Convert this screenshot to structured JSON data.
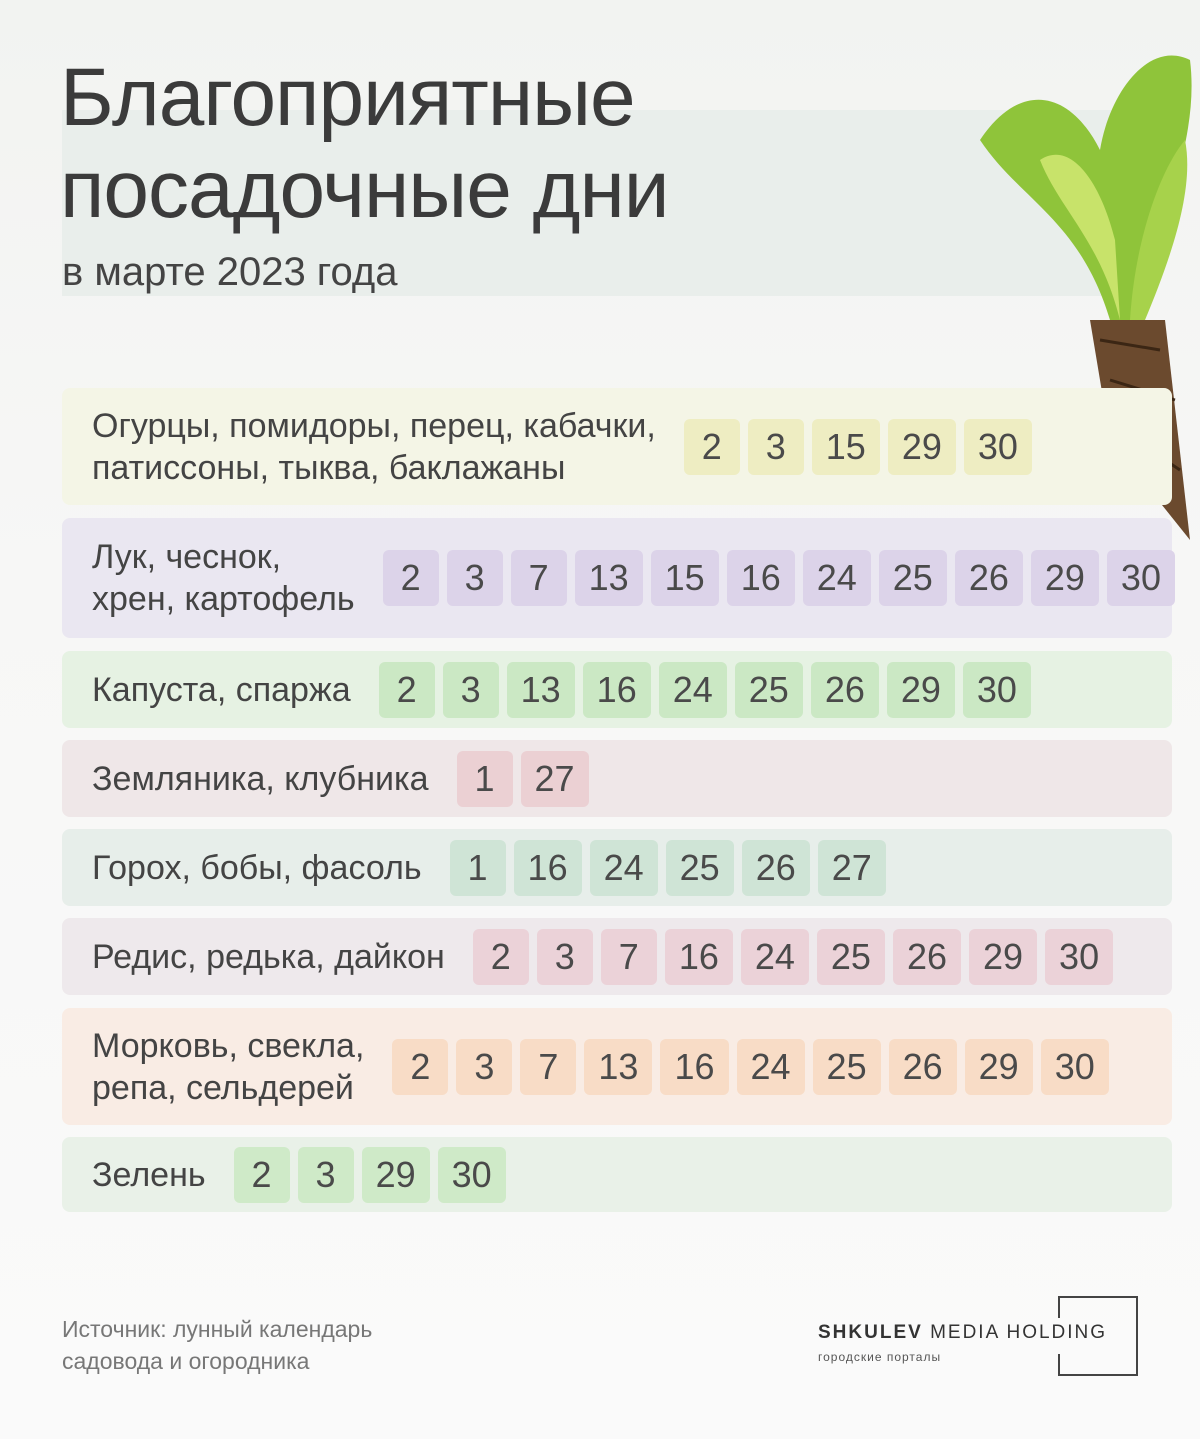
{
  "header": {
    "title": [
      "Благоприятные",
      "посадочные дни"
    ],
    "subtitle": "в марте 2023 года"
  },
  "rows": [
    {
      "label": [
        "Огурцы, помидоры, перец, кабачки,",
        "патиссоны, тыква, баклажаны"
      ],
      "days": [
        2,
        3,
        15,
        29,
        30
      ]
    },
    {
      "label": [
        "Лук, чеснок,",
        "хрен, картофель"
      ],
      "days": [
        2,
        3,
        7,
        13,
        15,
        16,
        24,
        25,
        26,
        29,
        30
      ]
    },
    {
      "label": [
        "Капуста, спаржа"
      ],
      "days": [
        2,
        3,
        13,
        16,
        24,
        25,
        26,
        29,
        30
      ]
    },
    {
      "label": [
        "Земляника, клубника"
      ],
      "days": [
        1,
        27
      ]
    },
    {
      "label": [
        "Горох, бобы, фасоль"
      ],
      "days": [
        1,
        16,
        24,
        25,
        26,
        27
      ]
    },
    {
      "label": [
        "Редис, редька, дайкон"
      ],
      "days": [
        2,
        3,
        7,
        16,
        24,
        25,
        26,
        29,
        30
      ]
    },
    {
      "label": [
        "Морковь, свекла,",
        "репа, сельдерей"
      ],
      "days": [
        2,
        3,
        7,
        13,
        16,
        24,
        25,
        26,
        29,
        30
      ]
    },
    {
      "label": [
        "Зелень"
      ],
      "days": [
        2,
        3,
        29,
        30
      ]
    }
  ],
  "footer": {
    "source": [
      "Источник: лунный календарь",
      "садовода и огородника"
    ],
    "logo": {
      "brand": "SHKULEV",
      "suffix": "MEDIA HOLDING",
      "tagline": "городские порталы"
    }
  }
}
